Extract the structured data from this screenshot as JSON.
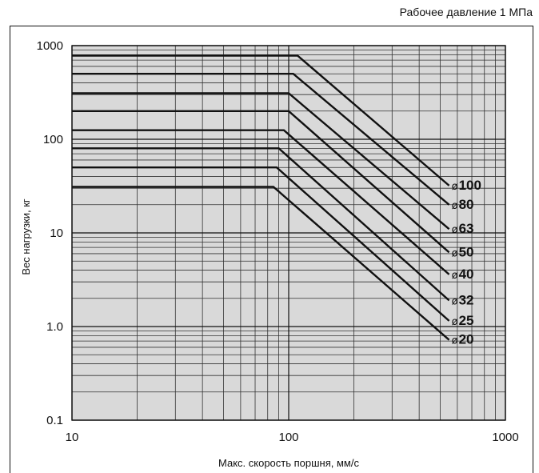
{
  "header": {
    "note": "Рабочее давление 1 МПа"
  },
  "chart_data": {
    "type": "line",
    "title": "",
    "xlabel": "Макс. скорость поршня, мм/с",
    "ylabel": "Вес нагрузки, кг",
    "xscale": "log",
    "yscale": "log",
    "xlim": [
      10,
      1000
    ],
    "ylim": [
      0.1,
      1000
    ],
    "grid": true,
    "x_tick_labels": [
      "10",
      "100",
      "1000"
    ],
    "y_tick_labels": [
      "0.1",
      "1.0",
      "10",
      "100",
      "1000"
    ],
    "series": [
      {
        "name": "ø100",
        "symbol": "ø",
        "size": "100",
        "x": [
          10,
          110,
          550
        ],
        "y": [
          780,
          780,
          32
        ]
      },
      {
        "name": "ø80",
        "symbol": "ø",
        "size": "80",
        "x": [
          10,
          105,
          550
        ],
        "y": [
          500,
          500,
          20
        ]
      },
      {
        "name": "ø63",
        "symbol": "ø",
        "size": "63",
        "x": [
          10,
          100,
          550
        ],
        "y": [
          310,
          310,
          11
        ]
      },
      {
        "name": "ø50",
        "symbol": "ø",
        "size": "50",
        "x": [
          10,
          100,
          550
        ],
        "y": [
          200,
          200,
          6.2
        ]
      },
      {
        "name": "ø40",
        "symbol": "ø",
        "size": "40",
        "x": [
          10,
          95,
          550
        ],
        "y": [
          125,
          125,
          3.6
        ]
      },
      {
        "name": "ø32",
        "symbol": "ø",
        "size": "32",
        "x": [
          10,
          90,
          550
        ],
        "y": [
          80,
          80,
          1.9
        ]
      },
      {
        "name": "ø25",
        "symbol": "ø",
        "size": "25",
        "x": [
          10,
          88,
          550
        ],
        "y": [
          50,
          50,
          1.15
        ]
      },
      {
        "name": "ø20",
        "symbol": "ø",
        "size": "20",
        "x": [
          10,
          85,
          550
        ],
        "y": [
          31,
          31,
          0.72
        ]
      }
    ]
  }
}
